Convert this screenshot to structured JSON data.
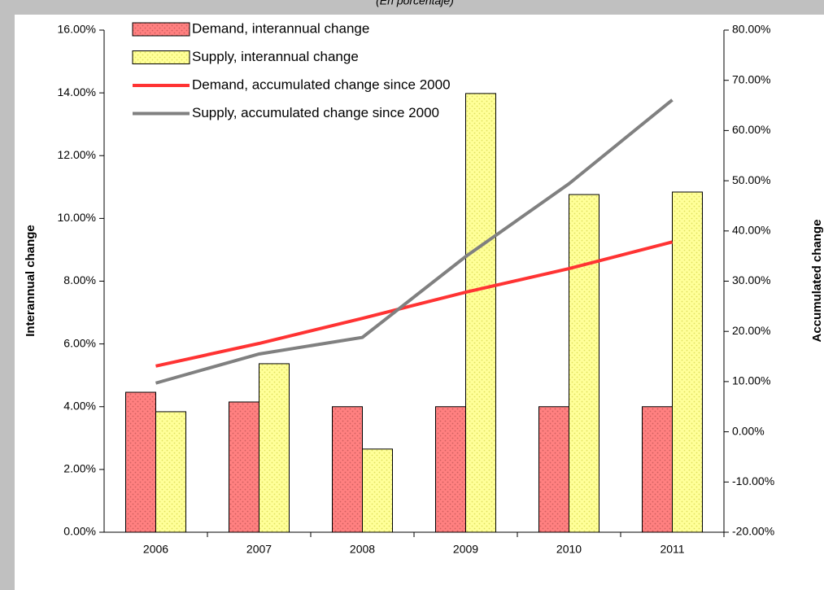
{
  "chart_data": {
    "type": "combo",
    "subtitle": "(En porcentaje)",
    "categories": [
      "2006",
      "2007",
      "2008",
      "2009",
      "2010",
      "2011"
    ],
    "ylabel": "Interannual change",
    "y2label": "Accumulated change",
    "ylim": [
      0,
      16
    ],
    "yticks": [
      {
        "value": 0,
        "label": "0.00%"
      },
      {
        "value": 2,
        "label": "2.00%"
      },
      {
        "value": 4,
        "label": "4.00%"
      },
      {
        "value": 6,
        "label": "6.00%"
      },
      {
        "value": 8,
        "label": "8.00%"
      },
      {
        "value": 10,
        "label": "10.00%"
      },
      {
        "value": 12,
        "label": "12.00%"
      },
      {
        "value": 14,
        "label": "14.00%"
      },
      {
        "value": 16,
        "label": "16.00%"
      }
    ],
    "y2lim": [
      -20,
      80
    ],
    "y2ticks": [
      {
        "value": -20,
        "label": "-20.00%"
      },
      {
        "value": -10,
        "label": "-10.00%"
      },
      {
        "value": 0,
        "label": "0.00%"
      },
      {
        "value": 10,
        "label": "10.00%"
      },
      {
        "value": 20,
        "label": "20.00%"
      },
      {
        "value": 30,
        "label": "30.00%"
      },
      {
        "value": 40,
        "label": "40.00%"
      },
      {
        "value": 50,
        "label": "50.00%"
      },
      {
        "value": 60,
        "label": "60.00%"
      },
      {
        "value": 70,
        "label": "70.00%"
      },
      {
        "value": 80,
        "label": "80.00%"
      }
    ],
    "legend": "upper left",
    "series": [
      {
        "name": "Demand, interannual change",
        "type": "bar",
        "color": "#ff8080",
        "values": [
          4.46,
          4.15,
          4.0,
          4.0,
          4.0,
          4.0
        ]
      },
      {
        "name": "Supply, interannual change",
        "type": "bar",
        "color": "#ffff99",
        "values": [
          3.84,
          5.37,
          2.65,
          13.98,
          10.76,
          10.84
        ]
      },
      {
        "name": "Demand, accumulated change since 2000",
        "type": "line",
        "axis": "y2",
        "color": "#ff3333",
        "values": [
          13.1,
          17.6,
          22.6,
          27.8,
          32.5,
          37.8
        ]
      },
      {
        "name": "Supply, accumulated change since 2000",
        "type": "line",
        "axis": "y2",
        "color": "#808080",
        "values": [
          9.7,
          15.5,
          18.8,
          34.9,
          49.4,
          66.1
        ]
      }
    ]
  }
}
